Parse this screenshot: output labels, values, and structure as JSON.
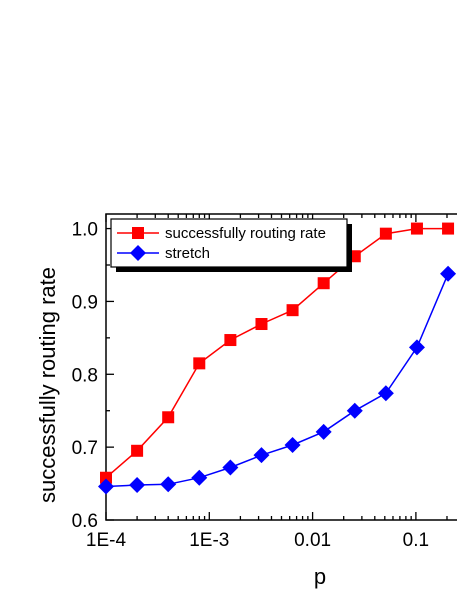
{
  "chart_data": {
    "type": "line",
    "xlabel": "p",
    "ylabel": "successfully routing rate",
    "x_scale": "log",
    "xlim": [
      0.0001,
      0.25
    ],
    "ylim": [
      0.6,
      1.02
    ],
    "x_ticks": [
      {
        "value": 0.0001,
        "label": "1E-4"
      },
      {
        "value": 0.001,
        "label": "1E-3"
      },
      {
        "value": 0.01,
        "label": "0.01"
      },
      {
        "value": 0.1,
        "label": "0.1"
      }
    ],
    "y_ticks": [
      {
        "value": 0.6,
        "label": "0.6"
      },
      {
        "value": 0.7,
        "label": "0.7"
      },
      {
        "value": 0.8,
        "label": "0.8"
      },
      {
        "value": 0.9,
        "label": "0.9"
      },
      {
        "value": 1.0,
        "label": "1.0"
      }
    ],
    "legend_position": "top-left",
    "series": [
      {
        "name": "successfully routing rate",
        "color": "#ff0000",
        "marker": "square",
        "x": [
          0.0001,
          0.0002,
          0.0004,
          0.0008,
          0.0016,
          0.0032,
          0.0064,
          0.0128,
          0.0256,
          0.0512,
          0.1024,
          0.2048
        ],
        "y": [
          0.658,
          0.695,
          0.741,
          0.815,
          0.847,
          0.869,
          0.888,
          0.925,
          0.962,
          0.993,
          1.0,
          1.0
        ]
      },
      {
        "name": "stretch",
        "color": "#0000ff",
        "marker": "diamond",
        "x": [
          0.0001,
          0.0002,
          0.0004,
          0.0008,
          0.0016,
          0.0032,
          0.0064,
          0.0128,
          0.0256,
          0.0512,
          0.1024,
          0.2048
        ],
        "y": [
          0.646,
          0.648,
          0.649,
          0.658,
          0.672,
          0.689,
          0.703,
          0.721,
          0.75,
          0.774,
          0.837,
          0.938
        ]
      }
    ]
  }
}
